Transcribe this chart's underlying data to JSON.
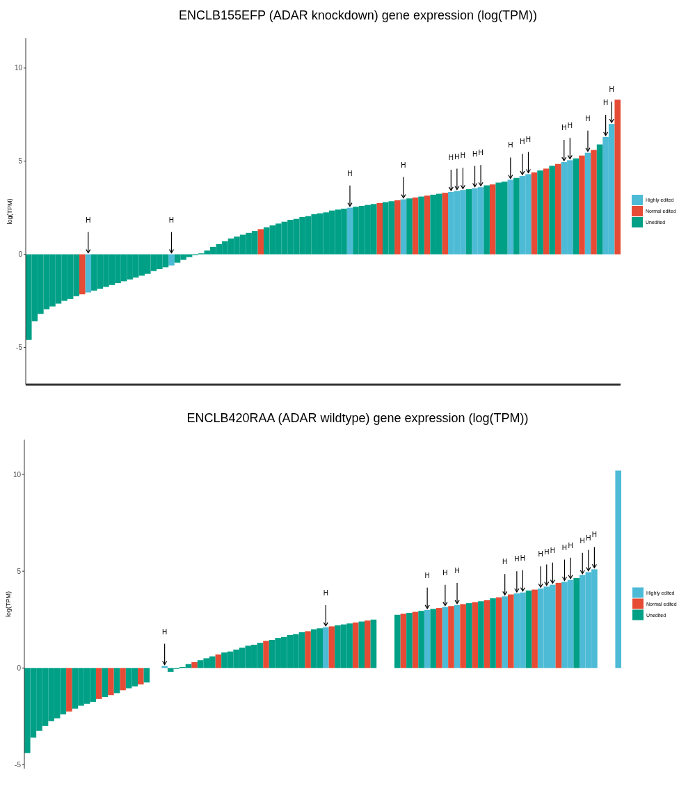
{
  "chart_data": [
    {
      "type": "bar",
      "title": "ENCLB155EFP (ADAR knockdown) gene expression (log(TPM))",
      "ylabel": "log(TPM)",
      "ylim": [
        -7,
        11.6
      ],
      "yticks": [
        -5,
        0,
        5,
        10
      ],
      "legend": "right",
      "categories": [
        null,
        null,
        null,
        null,
        null,
        null,
        null,
        null,
        null,
        null,
        null,
        null,
        null,
        null,
        null,
        null,
        null,
        null,
        null,
        null,
        null,
        null,
        null,
        null,
        null,
        null,
        null,
        null,
        null,
        null,
        null,
        null,
        null,
        null,
        null,
        null,
        null,
        null,
        null,
        null,
        null,
        null,
        null,
        null,
        null,
        null,
        null,
        null,
        null,
        null,
        null,
        null,
        null,
        null,
        null,
        null,
        null,
        null,
        null,
        null,
        null,
        null,
        null,
        null,
        null,
        null,
        null,
        null,
        null,
        null,
        null,
        null,
        null,
        null,
        null,
        null,
        null,
        null,
        null,
        null,
        null,
        null,
        null,
        null,
        null,
        null,
        null,
        null,
        null,
        null,
        null,
        null,
        null,
        null,
        null,
        null,
        null,
        null,
        null,
        null
      ],
      "series": [
        {
          "name": "Highly edited",
          "color": "#4dbbd5",
          "values": [
            null,
            null,
            null,
            null,
            null,
            null,
            null,
            null,
            null,
            null,
            -2.05,
            null,
            null,
            null,
            null,
            null,
            null,
            null,
            null,
            null,
            null,
            null,
            null,
            null,
            -0.6,
            null,
            null,
            null,
            null,
            null,
            null,
            null,
            null,
            null,
            null,
            null,
            null,
            null,
            null,
            null,
            null,
            null,
            null,
            null,
            null,
            null,
            null,
            null,
            null,
            null,
            null,
            null,
            null,
            null,
            2.5,
            null,
            null,
            null,
            null,
            null,
            null,
            null,
            null,
            2.95,
            null,
            null,
            null,
            null,
            null,
            null,
            null,
            3.35,
            3.4,
            3.45,
            null,
            3.55,
            3.6,
            null,
            null,
            null,
            null,
            4.0,
            null,
            4.2,
            4.3,
            null,
            null,
            null,
            null,
            null,
            4.95,
            5.05,
            null,
            null,
            5.45,
            null,
            null,
            6.3,
            7.0,
            null
          ],
          "value_labels": [
            null,
            null,
            null,
            null,
            null,
            null,
            null,
            null,
            null,
            null,
            "H",
            null,
            null,
            null,
            null,
            null,
            null,
            null,
            null,
            null,
            null,
            null,
            null,
            null,
            "H",
            null,
            null,
            null,
            null,
            null,
            null,
            null,
            null,
            null,
            null,
            null,
            null,
            null,
            null,
            null,
            null,
            null,
            null,
            null,
            null,
            null,
            null,
            null,
            null,
            null,
            null,
            null,
            null,
            null,
            "H",
            null,
            null,
            null,
            null,
            null,
            null,
            null,
            null,
            "H",
            null,
            null,
            null,
            null,
            null,
            null,
            null,
            "H",
            "H",
            "H",
            null,
            "H",
            "H",
            null,
            null,
            null,
            null,
            "H",
            null,
            "H",
            "H",
            null,
            null,
            null,
            null,
            null,
            "H",
            "H",
            null,
            null,
            "H",
            null,
            null,
            "H",
            "H",
            null
          ]
        },
        {
          "name": "Normal edited",
          "color": "#e64b35",
          "values": [
            null,
            null,
            null,
            null,
            null,
            null,
            null,
            null,
            null,
            -2.15,
            null,
            null,
            null,
            null,
            null,
            null,
            null,
            null,
            null,
            null,
            null,
            null,
            null,
            null,
            null,
            null,
            null,
            null,
            null,
            null,
            null,
            null,
            null,
            null,
            null,
            null,
            null,
            null,
            null,
            1.35,
            null,
            null,
            null,
            null,
            null,
            null,
            null,
            null,
            null,
            null,
            null,
            null,
            null,
            null,
            null,
            null,
            null,
            null,
            null,
            2.75,
            null,
            null,
            2.9,
            null,
            null,
            3.05,
            null,
            3.15,
            null,
            null,
            3.3,
            null,
            null,
            null,
            null,
            null,
            null,
            null,
            3.75,
            null,
            null,
            null,
            null,
            null,
            null,
            4.4,
            null,
            4.6,
            null,
            4.85,
            null,
            null,
            null,
            5.3,
            null,
            5.6,
            null,
            null,
            null,
            8.3
          ]
        },
        {
          "name": "Unedited",
          "color": "#00a087",
          "values": [
            -4.6,
            -3.6,
            -3.2,
            -2.95,
            -2.8,
            -2.65,
            -2.5,
            -2.4,
            -2.25,
            null,
            null,
            -1.95,
            -1.85,
            -1.75,
            -1.65,
            -1.55,
            -1.45,
            -1.35,
            -1.25,
            -1.15,
            -1.05,
            -0.9,
            -0.8,
            -0.7,
            null,
            -0.45,
            -0.3,
            -0.15,
            -0.05,
            0.05,
            0.2,
            0.4,
            0.55,
            0.7,
            0.85,
            0.95,
            1.05,
            1.15,
            1.25,
            null,
            1.45,
            1.55,
            1.65,
            1.75,
            1.85,
            1.9,
            2.0,
            2.05,
            2.15,
            2.2,
            2.25,
            2.35,
            2.4,
            2.45,
            null,
            2.55,
            2.6,
            2.65,
            2.7,
            null,
            2.8,
            2.85,
            null,
            null,
            3.0,
            null,
            3.1,
            null,
            3.2,
            3.25,
            null,
            null,
            null,
            null,
            3.5,
            null,
            null,
            3.7,
            null,
            3.85,
            3.9,
            null,
            4.1,
            null,
            null,
            null,
            4.5,
            null,
            4.75,
            null,
            null,
            null,
            5.15,
            null,
            null,
            null,
            5.9,
            null,
            null,
            null
          ]
        }
      ]
    },
    {
      "type": "bar",
      "title": "ENCLB420RAA (ADAR wildtype) gene expression (log(TPM))",
      "ylabel": "log(TPM)",
      "ylim": [
        -5.2,
        11.8
      ],
      "yticks": [
        -5,
        0,
        5,
        10
      ],
      "legend": "right",
      "categories": [
        null,
        null,
        null,
        null,
        null,
        null,
        null,
        null,
        null,
        null,
        null,
        null,
        null,
        null,
        null,
        null,
        null,
        null,
        null,
        null,
        null,
        null,
        null,
        null,
        null,
        null,
        null,
        null,
        null,
        null,
        null,
        null,
        null,
        null,
        null,
        null,
        null,
        null,
        null,
        null,
        null,
        null,
        null,
        null,
        null,
        null,
        null,
        null,
        null,
        null,
        null,
        null,
        null,
        null,
        null,
        null,
        null,
        null,
        null,
        null,
        null,
        null,
        null,
        null,
        null,
        null,
        null,
        null,
        null,
        null,
        null,
        null,
        null,
        null,
        null,
        null,
        null,
        null,
        null,
        null,
        null,
        null,
        null,
        null,
        null,
        null,
        null,
        null,
        null,
        null,
        null,
        null,
        null,
        null,
        null,
        null,
        null,
        null,
        null,
        null
      ],
      "series": [
        {
          "name": "Highly edited",
          "color": "#4dbbd5",
          "values": [
            null,
            null,
            null,
            null,
            null,
            null,
            null,
            null,
            null,
            null,
            null,
            null,
            null,
            null,
            null,
            null,
            null,
            null,
            null,
            null,
            null,
            null,
            null,
            0.1,
            null,
            null,
            null,
            null,
            null,
            null,
            null,
            null,
            null,
            null,
            null,
            null,
            null,
            null,
            null,
            null,
            null,
            null,
            null,
            null,
            null,
            null,
            null,
            null,
            null,
            null,
            2.1,
            null,
            null,
            null,
            null,
            null,
            null,
            null,
            null,
            null,
            null,
            null,
            null,
            null,
            null,
            null,
            null,
            3.0,
            null,
            null,
            3.15,
            null,
            3.25,
            null,
            null,
            null,
            null,
            null,
            null,
            null,
            3.7,
            null,
            3.85,
            3.9,
            null,
            null,
            4.1,
            4.2,
            4.3,
            null,
            4.45,
            4.55,
            null,
            4.8,
            4.95,
            5.1,
            null,
            null,
            null,
            10.2
          ],
          "value_labels": [
            null,
            null,
            null,
            null,
            null,
            null,
            null,
            null,
            null,
            null,
            null,
            null,
            null,
            null,
            null,
            null,
            null,
            null,
            null,
            null,
            null,
            null,
            null,
            "H",
            null,
            null,
            null,
            null,
            null,
            null,
            null,
            null,
            null,
            null,
            null,
            null,
            null,
            null,
            null,
            null,
            null,
            null,
            null,
            null,
            null,
            null,
            null,
            null,
            null,
            null,
            "H",
            null,
            null,
            null,
            null,
            null,
            null,
            null,
            null,
            null,
            null,
            null,
            null,
            null,
            null,
            null,
            null,
            "H",
            null,
            null,
            "H",
            null,
            "H",
            null,
            null,
            null,
            null,
            null,
            null,
            null,
            "H",
            null,
            "H",
            "H",
            null,
            null,
            "H",
            "H",
            "H",
            null,
            "H",
            "H",
            null,
            "H",
            "H",
            "H",
            null,
            null,
            null,
            null
          ]
        },
        {
          "name": "Normal edited",
          "color": "#e64b35",
          "values": [
            null,
            null,
            null,
            null,
            null,
            null,
            null,
            -2.25,
            null,
            null,
            null,
            null,
            -1.6,
            null,
            -1.4,
            null,
            -1.15,
            null,
            null,
            -0.85,
            null,
            null,
            null,
            null,
            null,
            null,
            null,
            null,
            0.3,
            null,
            null,
            null,
            0.7,
            null,
            null,
            null,
            null,
            null,
            null,
            null,
            1.4,
            null,
            null,
            null,
            null,
            null,
            null,
            1.9,
            null,
            null,
            null,
            2.15,
            null,
            null,
            null,
            2.35,
            null,
            2.45,
            null,
            null,
            null,
            null,
            null,
            2.8,
            null,
            2.9,
            null,
            null,
            null,
            3.1,
            null,
            3.2,
            null,
            3.3,
            null,
            3.4,
            null,
            3.5,
            null,
            3.65,
            null,
            3.8,
            null,
            null,
            null,
            4.05,
            null,
            null,
            null,
            4.4,
            null,
            null,
            null,
            null,
            null,
            null,
            null,
            null,
            null,
            null
          ]
        },
        {
          "name": "Unedited",
          "color": "#00a087",
          "values": [
            -4.4,
            -3.6,
            -3.25,
            -3.0,
            -2.75,
            -2.6,
            -2.4,
            null,
            -2.1,
            -1.95,
            -1.85,
            -1.75,
            null,
            -1.5,
            null,
            -1.3,
            null,
            -1.05,
            -0.95,
            null,
            -0.75,
            null,
            null,
            null,
            -0.2,
            -0.05,
            0.05,
            0.2,
            null,
            0.4,
            0.5,
            0.6,
            null,
            0.8,
            0.85,
            0.95,
            1.05,
            1.15,
            1.2,
            1.3,
            null,
            1.45,
            1.55,
            1.6,
            1.7,
            1.75,
            1.85,
            null,
            2.0,
            2.05,
            null,
            null,
            2.2,
            2.25,
            2.3,
            null,
            2.4,
            null,
            2.5,
            null,
            null,
            null,
            2.75,
            null,
            2.85,
            null,
            2.95,
            null,
            3.05,
            null,
            null,
            null,
            null,
            null,
            3.35,
            null,
            3.45,
            null,
            3.6,
            null,
            null,
            null,
            null,
            null,
            4.0,
            null,
            null,
            null,
            null,
            null,
            null,
            null,
            4.65,
            null,
            null,
            null,
            null,
            null,
            null,
            null
          ]
        }
      ]
    }
  ]
}
